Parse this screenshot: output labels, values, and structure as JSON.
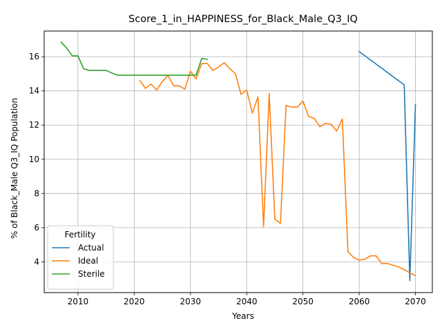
{
  "chart_data": {
    "type": "line",
    "title": "Score_1_in_HAPPINESS_for_Black_Male_Q3_IQ",
    "xlabel": "Years",
    "ylabel": "% of Black_Male Q3_IQ Population",
    "xlim": [
      2004,
      2073
    ],
    "ylim": [
      2.2,
      17.5
    ],
    "x_ticks": [
      2010,
      2020,
      2030,
      2040,
      2050,
      2060,
      2070
    ],
    "y_ticks": [
      4,
      6,
      8,
      10,
      12,
      14,
      16
    ],
    "grid": true,
    "legend": {
      "title": "Fertility",
      "placement": "lower-left"
    },
    "series": [
      {
        "name": "Actual",
        "color": "#1f77b4",
        "points": [
          [
            2060,
            16.3
          ],
          [
            2068,
            14.35
          ],
          [
            2069,
            2.9
          ],
          [
            2070,
            13.2
          ]
        ]
      },
      {
        "name": "Ideal",
        "color": "#ff7f0e",
        "points": [
          [
            2021,
            14.6
          ],
          [
            2022,
            14.15
          ],
          [
            2023,
            14.4
          ],
          [
            2024,
            14.05
          ],
          [
            2025,
            14.55
          ],
          [
            2026,
            14.9
          ],
          [
            2027,
            14.3
          ],
          [
            2028,
            14.3
          ],
          [
            2029,
            14.1
          ],
          [
            2030,
            15.15
          ],
          [
            2031,
            14.7
          ],
          [
            2032,
            15.6
          ],
          [
            2033,
            15.6
          ],
          [
            2034,
            15.2
          ],
          [
            2035,
            15.4
          ],
          [
            2036,
            15.65
          ],
          [
            2037,
            15.3
          ],
          [
            2038,
            15.0
          ],
          [
            2039,
            13.8
          ],
          [
            2040,
            14.05
          ],
          [
            2041,
            12.7
          ],
          [
            2042,
            13.65
          ],
          [
            2043,
            6.05
          ],
          [
            2044,
            13.85
          ],
          [
            2045,
            6.5
          ],
          [
            2046,
            6.25
          ],
          [
            2047,
            13.15
          ],
          [
            2048,
            13.05
          ],
          [
            2049,
            13.05
          ],
          [
            2050,
            13.4
          ],
          [
            2051,
            12.5
          ],
          [
            2052,
            12.4
          ],
          [
            2053,
            11.9
          ],
          [
            2054,
            12.1
          ],
          [
            2055,
            12.05
          ],
          [
            2056,
            11.65
          ],
          [
            2057,
            12.35
          ],
          [
            2058,
            4.6
          ],
          [
            2059,
            4.25
          ],
          [
            2060,
            4.1
          ],
          [
            2061,
            4.15
          ],
          [
            2062,
            4.35
          ],
          [
            2063,
            4.35
          ],
          [
            2064,
            3.9
          ],
          [
            2065,
            3.9
          ],
          [
            2066,
            3.8
          ],
          [
            2067,
            3.7
          ],
          [
            2068,
            3.55
          ],
          [
            2069,
            3.35
          ],
          [
            2070,
            3.2
          ]
        ]
      },
      {
        "name": "Sterile",
        "color": "#2ca02c",
        "points": [
          [
            2007,
            16.85
          ],
          [
            2008,
            16.5
          ],
          [
            2009,
            16.05
          ],
          [
            2010,
            16.05
          ],
          [
            2011,
            15.3
          ],
          [
            2012,
            15.2
          ],
          [
            2013,
            15.2
          ],
          [
            2014,
            15.2
          ],
          [
            2015,
            15.2
          ],
          [
            2016,
            15.05
          ],
          [
            2017,
            14.92
          ],
          [
            2018,
            14.92
          ],
          [
            2019,
            14.92
          ],
          [
            2020,
            14.92
          ],
          [
            2021,
            14.92
          ],
          [
            2022,
            14.92
          ],
          [
            2023,
            14.92
          ],
          [
            2024,
            14.92
          ],
          [
            2025,
            14.92
          ],
          [
            2026,
            14.92
          ],
          [
            2027,
            14.92
          ],
          [
            2028,
            14.92
          ],
          [
            2029,
            14.92
          ],
          [
            2030,
            14.92
          ],
          [
            2031,
            14.92
          ],
          [
            2032,
            15.9
          ],
          [
            2033,
            15.85
          ]
        ]
      }
    ]
  }
}
